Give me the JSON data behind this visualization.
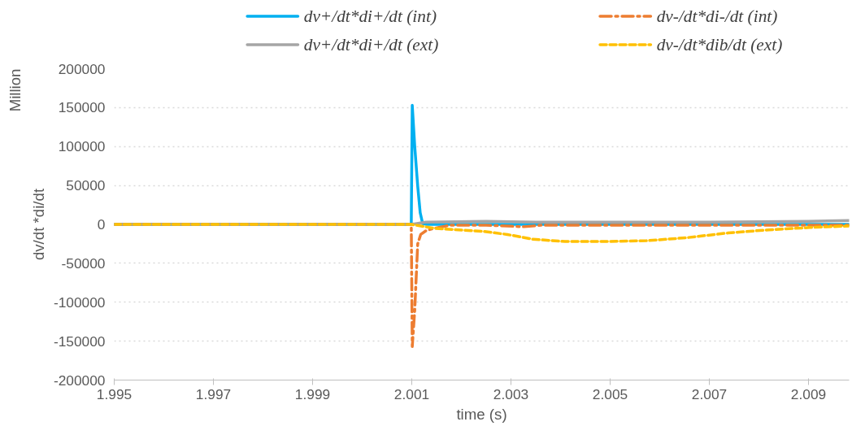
{
  "chart_data": {
    "type": "line",
    "xlabel": "time (s)",
    "ylabel": "dv/dt *di/dt",
    "annotations": [
      "Million"
    ],
    "xlim": [
      1.995,
      2.00982
    ],
    "xticks": [
      {
        "value": 1.995,
        "label": "1.995"
      },
      {
        "value": 1.997,
        "label": "1.997"
      },
      {
        "value": 1.999,
        "label": "1.999"
      },
      {
        "value": 2.001,
        "label": "2.001"
      },
      {
        "value": 2.003,
        "label": "2.003"
      },
      {
        "value": 2.005,
        "label": "2.005"
      },
      {
        "value": 2.007,
        "label": "2.007"
      },
      {
        "value": 2.009,
        "label": "2.009"
      }
    ],
    "ylim": [
      -200000,
      200000
    ],
    "yticks": [
      -200000,
      -150000,
      -100000,
      -50000,
      0,
      50000,
      100000,
      150000,
      200000
    ],
    "grid": "y",
    "legend": "top",
    "marker": "none",
    "series": [
      {
        "name": "dv+/dt*di+/dt (int)",
        "color": "#00b0f0",
        "line_style": "solid",
        "x": [
          1.995,
          2.0,
          2.00099,
          2.00101,
          2.00106,
          2.00112,
          2.00117,
          2.00122,
          2.0013,
          2.002,
          2.004,
          2.006,
          2.008,
          2.00982
        ],
        "values": [
          0,
          0,
          0,
          153000,
          100000,
          49000,
          15000,
          1000,
          0,
          0,
          0,
          0,
          0,
          0
        ]
      },
      {
        "name": "dv-/dt*di-/dt (int)",
        "color": "#ed7d31",
        "line_style": "dashdot",
        "x": [
          1.995,
          2.0,
          2.00099,
          2.00101,
          2.00106,
          2.00112,
          2.00118,
          2.00129,
          2.00145,
          2.00178,
          2.0025,
          2.00326,
          2.0036,
          2.005,
          2.007,
          2.009,
          2.00982
        ],
        "values": [
          0,
          0,
          0,
          -157000,
          -110000,
          -25000,
          -13000,
          -8000,
          -5000,
          -1000,
          -1000,
          -3000,
          -1000,
          -1000,
          -1000,
          -1000,
          -1000
        ]
      },
      {
        "name": "dv+/dt*di+/dt (ext)",
        "color": "#a5a5a5",
        "line_style": "solid",
        "x": [
          1.995,
          2.0,
          2.00099,
          2.0012,
          2.00129,
          2.0025,
          2.0035,
          2.005,
          2.007,
          2.009,
          2.00982
        ],
        "values": [
          0,
          0,
          0,
          2000,
          3000,
          4000,
          3000,
          3000,
          3000,
          4000,
          5000
        ]
      },
      {
        "name": "dv-/dt*dib/dt (ext)",
        "color": "#ffc000",
        "line_style": "dashed",
        "x": [
          1.995,
          2.0,
          2.00099,
          2.00145,
          2.00244,
          2.00293,
          2.00343,
          2.00409,
          2.00491,
          2.00573,
          2.00656,
          2.00738,
          2.0082,
          2.00903,
          2.00982
        ],
        "values": [
          0,
          0,
          0,
          -5000,
          -9000,
          -13000,
          -19000,
          -22000,
          -22000,
          -21000,
          -17000,
          -11000,
          -7000,
          -4000,
          -2000
        ]
      }
    ]
  }
}
